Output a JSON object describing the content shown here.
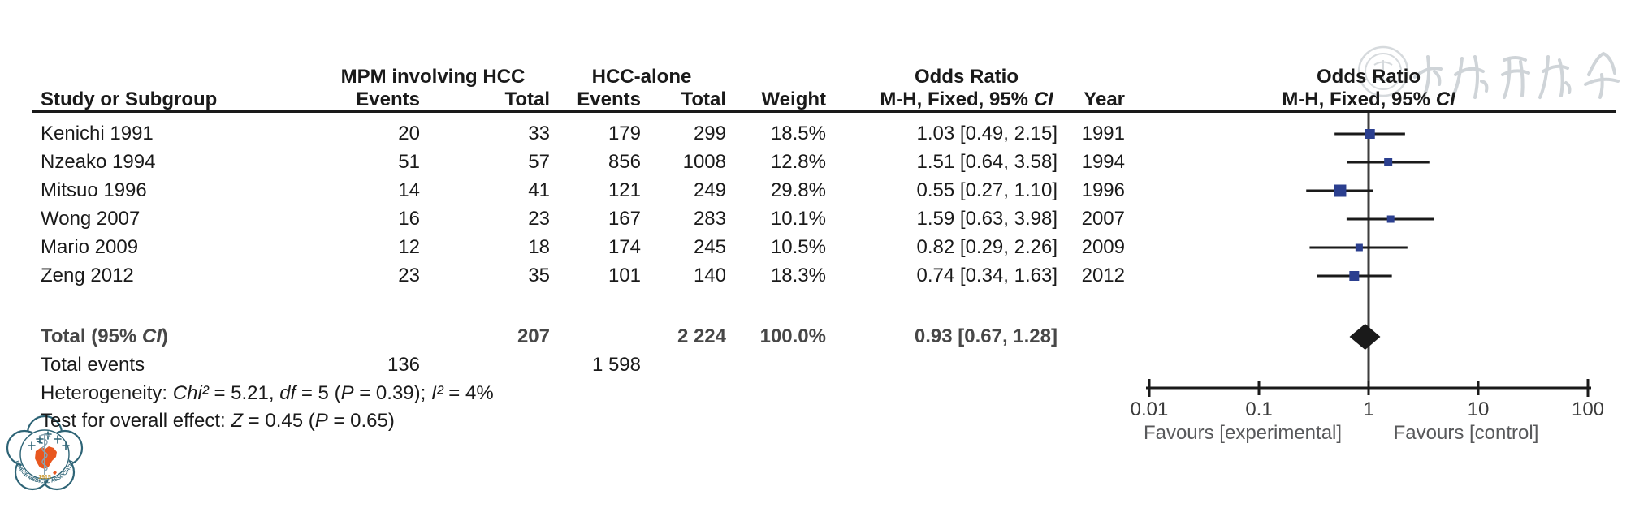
{
  "colors": {
    "marker_blue": "#2b3f8f",
    "diamond_black": "#1a1a1a",
    "logo_orange": "#e8571f",
    "logo_teal": "#2e6476",
    "watermark_gray": "#cfd4d8"
  },
  "table": {
    "group_headers": {
      "group1": "MPM involving HCC",
      "group2": "HCC-alone",
      "or_left": "Odds Ratio",
      "or_right": "Odds Ratio"
    },
    "col_headers": {
      "study": "Study or Subgroup",
      "events1": "Events",
      "total1": "Total",
      "events2": "Events",
      "total2": "Total",
      "weight": "Weight",
      "mh_ci_segments": [
        {
          "t": "M-H, Fixed, 95% "
        },
        {
          "t": "CI",
          "i": true
        }
      ],
      "year": "Year"
    },
    "studies": [
      {
        "study": "Kenichi 1991",
        "events1": "20",
        "total1": "33",
        "events2": "179",
        "total2": "299",
        "weight": "18.5%",
        "or_ci": "1.03 [0.49, 2.15]",
        "year": "1991"
      },
      {
        "study": "Nzeako 1994",
        "events1": "51",
        "total1": "57",
        "events2": "856",
        "total2": "1008",
        "weight": "12.8%",
        "or_ci": "1.51 [0.64, 3.58]",
        "year": "1994"
      },
      {
        "study": "Mitsuo 1996",
        "events1": "14",
        "total1": "41",
        "events2": "121",
        "total2": "249",
        "weight": "29.8%",
        "or_ci": "0.55 [0.27, 1.10]",
        "year": "1996"
      },
      {
        "study": "Wong 2007",
        "events1": "16",
        "total1": "23",
        "events2": "167",
        "total2": "283",
        "weight": "10.1%",
        "or_ci": "1.59 [0.63, 3.98]",
        "year": "2007"
      },
      {
        "study": "Mario 2009",
        "events1": "12",
        "total1": "18",
        "events2": "174",
        "total2": "245",
        "weight": "10.5%",
        "or_ci": "0.82 [0.29, 2.26]",
        "year": "2009"
      },
      {
        "study": "Zeng 2012",
        "events1": "23",
        "total1": "35",
        "events2": "101",
        "total2": "140",
        "weight": "18.3%",
        "or_ci": "0.74 [0.34, 1.63]",
        "year": "2012"
      }
    ],
    "total_row": {
      "label_segments": [
        {
          "t": "Total (95% "
        },
        {
          "t": "CI",
          "i": true
        },
        {
          "t": ")"
        }
      ],
      "total1": "207",
      "total2": "2 224",
      "weight": "100.0%",
      "or_ci": "0.93 [0.67, 1.28]"
    },
    "total_events": {
      "label": "Total events",
      "events1": "136",
      "events2": "1 598"
    },
    "heterogeneity_segments": [
      {
        "t": "Heterogeneity: "
      },
      {
        "t": "Chi²",
        "i": true
      },
      {
        "t": " = 5.21, "
      },
      {
        "t": "df",
        "i": true
      },
      {
        "t": " = 5 ("
      },
      {
        "t": "P",
        "i": true
      },
      {
        "t": " = 0.39); "
      },
      {
        "t": "I²",
        "i": true
      },
      {
        "t": " = 4%"
      }
    ],
    "overall_effect_segments": [
      {
        "t": "Test for overall effect: "
      },
      {
        "t": "Z",
        "i": true
      },
      {
        "t": " = 0.45 ("
      },
      {
        "t": "P",
        "i": true
      },
      {
        "t": " = 0.65)"
      }
    ]
  },
  "chart_data": {
    "type": "scatter",
    "subtype": "forest-plot",
    "x_scale": "log10",
    "xlim": [
      0.01,
      100
    ],
    "x_ticks": [
      0.01,
      0.1,
      1,
      10,
      100
    ],
    "x_tick_labels": [
      "0.01",
      "0.1",
      "1",
      "10",
      "100"
    ],
    "favours_left": "Favours [experimental]",
    "favours_right": "Favours [control]",
    "effect_measure": "Odds Ratio, M-H, Fixed, 95% CI",
    "studies": [
      {
        "name": "Kenichi 1991",
        "or": 1.03,
        "ci_low": 0.49,
        "ci_high": 2.15,
        "weight_pct": 18.5,
        "year": 1991
      },
      {
        "name": "Nzeako 1994",
        "or": 1.51,
        "ci_low": 0.64,
        "ci_high": 3.58,
        "weight_pct": 12.8,
        "year": 1994
      },
      {
        "name": "Mitsuo 1996",
        "or": 0.55,
        "ci_low": 0.27,
        "ci_high": 1.1,
        "weight_pct": 29.8,
        "year": 1996
      },
      {
        "name": "Wong 2007",
        "or": 1.59,
        "ci_low": 0.63,
        "ci_high": 3.98,
        "weight_pct": 10.1,
        "year": 2007
      },
      {
        "name": "Mario 2009",
        "or": 0.82,
        "ci_low": 0.29,
        "ci_high": 2.26,
        "weight_pct": 10.5,
        "year": 2009
      },
      {
        "name": "Zeng 2012",
        "or": 0.74,
        "ci_low": 0.34,
        "ci_high": 1.63,
        "weight_pct": 18.3,
        "year": 2012
      }
    ],
    "total": {
      "or": 0.93,
      "ci_low": 0.67,
      "ci_high": 1.28,
      "marker": "diamond"
    }
  },
  "logo": {
    "org_text": "CHINESE MEDICAL ASSOCIATION",
    "year_text": "1915",
    "calligraphy_text": "中华医学会"
  }
}
